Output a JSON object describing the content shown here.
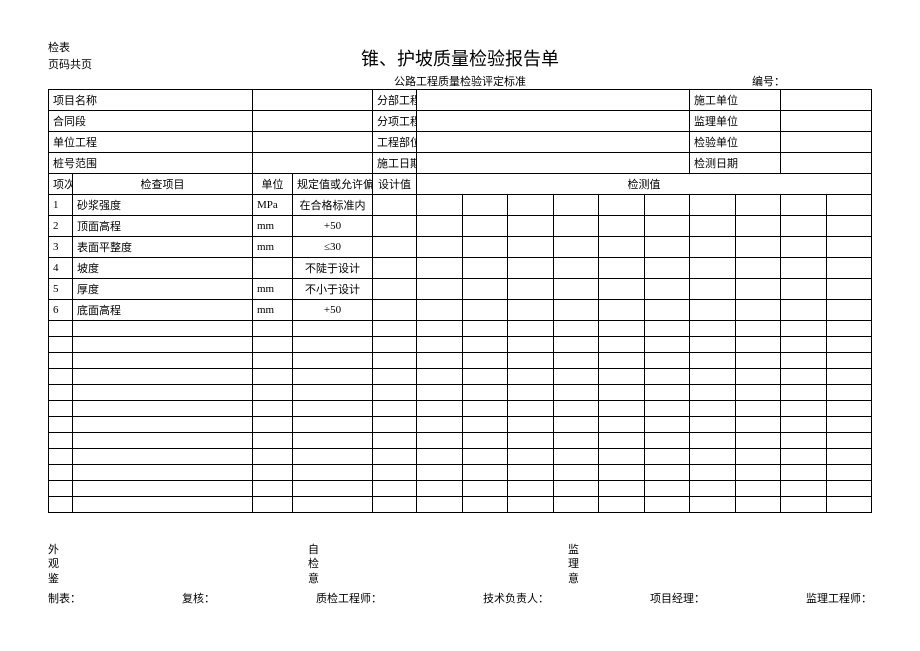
{
  "header": {
    "top_left_1": "检表",
    "top_left_2": "页码共页",
    "title": "锥、护坡质量检验报告单",
    "subtitle": "公路工程质量检验评定标准",
    "bianhao_label": "编号："
  },
  "info": {
    "r1c1": "项目名称",
    "r1c2": "分部工程",
    "r1c3": "施工单位",
    "r2c1": "合同段",
    "r2c2": "分项工程",
    "r2c3": "监理单位",
    "r3c1": "单位工程",
    "r3c2": "工程部位",
    "r3c3": "检验单位",
    "r4c1": "桩号范围",
    "r4c2": "施工日期",
    "r4c3": "检测日期"
  },
  "head": {
    "xiangci": "项次",
    "jiancha": "检查项目",
    "danwei": "单位",
    "guiding": "规定值或允许偏差",
    "shejizhi": "设计值",
    "jiancezhi": "检测值"
  },
  "rows": [
    {
      "n": "1",
      "item": "砂浆强度",
      "unit": "MPa",
      "spec": "在合格标准内"
    },
    {
      "n": "2",
      "item": "顶面高程",
      "unit": "mm",
      "spec": "+50"
    },
    {
      "n": "3",
      "item": "表面平整度",
      "unit": "mm",
      "spec": "≤30"
    },
    {
      "n": "4",
      "item": "坡度",
      "unit": "",
      "spec": "不陡于设计"
    },
    {
      "n": "5",
      "item": "厚度",
      "unit": "mm",
      "spec": "不小于设计"
    },
    {
      "n": "6",
      "item": "底面高程",
      "unit": "mm",
      "spec": "+50"
    }
  ],
  "blank_rows": 12,
  "bottom": {
    "col1a": "外",
    "col1b": "观",
    "col1c": "鉴",
    "col2a": "自",
    "col2b": "检",
    "col2c": "意",
    "col3a": "监",
    "col3b": "理",
    "col3c": "意"
  },
  "sign": {
    "s1": "制表：",
    "s2": "复核：",
    "s3": "质检工程师：",
    "s4": "技术负责人：",
    "s5": "项目经理：",
    "s6": "监理工程师："
  },
  "layout": {
    "info_label_w": 60,
    "info_val1_w": 260,
    "info_mid_label_w": 60,
    "info_val2_w": 300,
    "info_right_label_w": 55,
    "col_n": 24,
    "col_item": 180,
    "col_unit": 40,
    "col_spec": 80,
    "col_design": 44,
    "meas_cols": 10,
    "border_color": "#000000",
    "bg_color": "#ffffff"
  }
}
